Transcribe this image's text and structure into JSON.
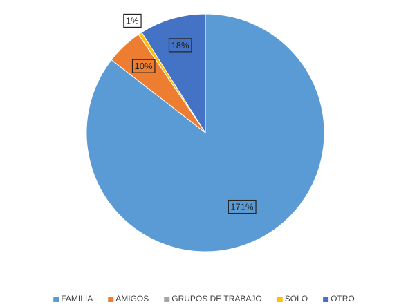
{
  "chart_data": {
    "type": "pie",
    "categories": [
      "FAMILIA",
      "AMIGOS",
      "GRUPOS DE TRABAJO",
      "SOLO",
      "OTRO"
    ],
    "values": [
      171,
      10,
      0,
      1,
      18
    ],
    "value_labels": [
      "171%",
      "10%",
      null,
      "1%",
      "18%"
    ],
    "colors": [
      "#5b9bd5",
      "#ed7d31",
      "#a5a5a5",
      "#ffc000",
      "#4472c4"
    ],
    "legend": "bottom"
  }
}
